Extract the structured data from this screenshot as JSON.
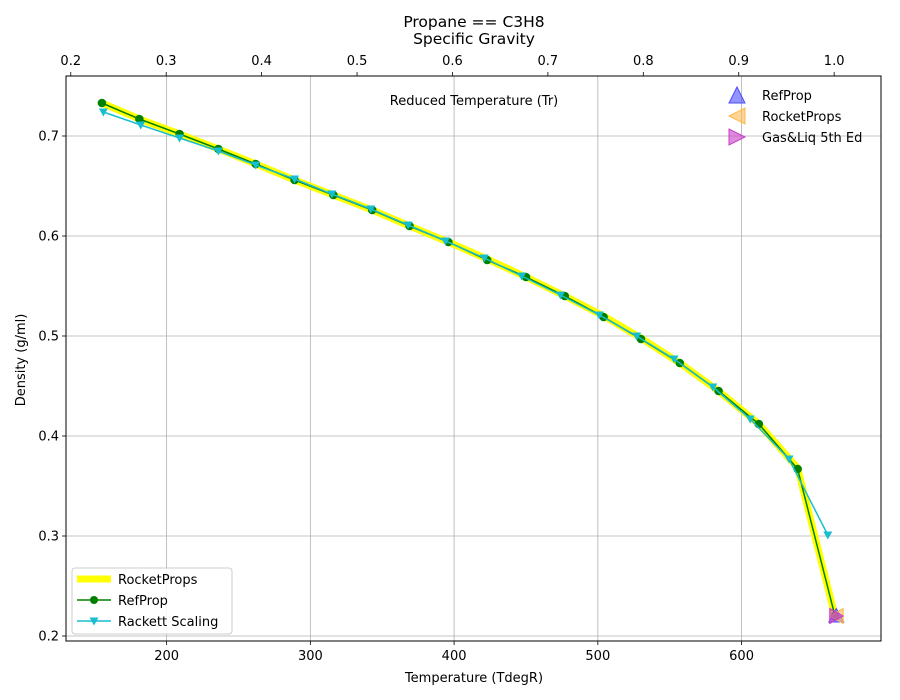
{
  "chart_data": {
    "type": "line",
    "title": "Propane == C3H8",
    "subtitle": "Specific Gravity",
    "xlabel": "Temperature (TdegR)",
    "ylabel": "Density (g/ml)",
    "top_xlabel": "Reduced Temperature (Tr)",
    "xlim": [
      130,
      697
    ],
    "ylim": [
      0.195,
      0.76
    ],
    "top_xlim": [
      0.195,
      1.0491
    ],
    "x_ticks": [
      200,
      300,
      400,
      500,
      600
    ],
    "x_tick_labels": [
      "200",
      "300",
      "400",
      "500",
      "600"
    ],
    "y_ticks": [
      0.2,
      0.3,
      0.4,
      0.5,
      0.6,
      0.7
    ],
    "y_tick_labels": [
      "0.2",
      "0.3",
      "0.4",
      "0.5",
      "0.6",
      "0.7"
    ],
    "top_ticks": [
      0.2,
      0.3,
      0.4,
      0.5,
      0.6,
      0.7,
      0.8,
      0.9,
      1.0
    ],
    "top_tick_labels": [
      "0.2",
      "0.3",
      "0.4",
      "0.5",
      "0.6",
      "0.7",
      "0.8",
      "0.9",
      "1.0"
    ],
    "grid": true,
    "legend_placement": "lower-left",
    "legend2_placement": "upper-right",
    "series": [
      {
        "name": "RocketProps",
        "kind": "line",
        "color": "#ffff00",
        "x": [
          155,
          181,
          209,
          236,
          262,
          289,
          316,
          343,
          369,
          396,
          423,
          450,
          477,
          504,
          530,
          557,
          584,
          612,
          639,
          665
        ],
        "y": [
          0.733,
          0.717,
          0.702,
          0.687,
          0.672,
          0.656,
          0.641,
          0.626,
          0.61,
          0.594,
          0.577,
          0.559,
          0.54,
          0.52,
          0.498,
          0.473,
          0.445,
          0.412,
          0.368,
          0.22
        ]
      },
      {
        "name": "RefProp",
        "kind": "line-marker-circle",
        "color": "#008000",
        "x": [
          155,
          181,
          209,
          236,
          262,
          289,
          316,
          343,
          369,
          396,
          423,
          450,
          477,
          504,
          530,
          557,
          584,
          612,
          639,
          665
        ],
        "y": [
          0.733,
          0.717,
          0.702,
          0.687,
          0.672,
          0.656,
          0.641,
          0.626,
          0.61,
          0.594,
          0.576,
          0.559,
          0.54,
          0.519,
          0.497,
          0.473,
          0.445,
          0.412,
          0.367,
          0.22
        ]
      },
      {
        "name": "Rackett Scaling",
        "kind": "line-marker-triangle-down",
        "color": "#17becf",
        "x": [
          156,
          182,
          209,
          236,
          262,
          289,
          315,
          342,
          368,
          394,
          421,
          447,
          474,
          501,
          527,
          553,
          580,
          606,
          633,
          660
        ],
        "y": [
          0.724,
          0.711,
          0.698,
          0.685,
          0.671,
          0.657,
          0.642,
          0.627,
          0.611,
          0.595,
          0.578,
          0.56,
          0.541,
          0.521,
          0.5,
          0.477,
          0.449,
          0.417,
          0.377,
          0.301
        ]
      }
    ],
    "critical_points": [
      {
        "name": "RefProp",
        "marker": "triangle-up",
        "color": "#4c4cff",
        "x": 665.9,
        "y": 0.22
      },
      {
        "name": "RocketProps",
        "marker": "triangle-left",
        "color": "#ffb84d",
        "x": 666.5,
        "y": 0.22
      },
      {
        "name": "Gas&Liq 5th Ed",
        "marker": "triangle-right",
        "color": "#c83cc8",
        "x": 665.5,
        "y": 0.22
      }
    ]
  }
}
